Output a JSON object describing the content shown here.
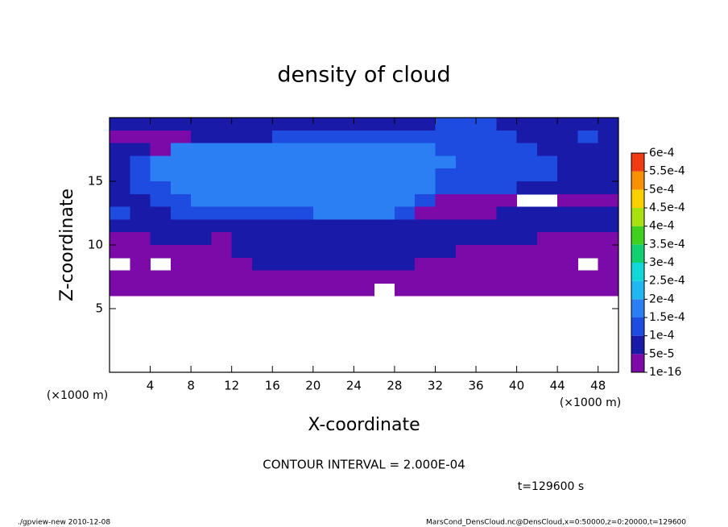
{
  "chart_data": {
    "type": "contour",
    "title": "density of cloud",
    "x_label": "X-coordinate",
    "y_label": "Z-coordinate",
    "x_unit": "(×1000 m)",
    "xlim": [
      0,
      50
    ],
    "ylim": [
      0,
      20
    ],
    "xticks": [
      4,
      8,
      12,
      16,
      20,
      24,
      28,
      32,
      36,
      40,
      44,
      48
    ],
    "yticks": [
      5,
      10,
      15
    ],
    "levels": [
      1e-16,
      {
        "value": 5e-05,
        "label": "5e-5"
      },
      {
        "value": 0.0001,
        "label": "1e-4"
      },
      {
        "value": 0.00015,
        "label": "1.5e-4"
      },
      {
        "value": 0.0002,
        "label": "2e-4"
      },
      {
        "value": 0.00025,
        "label": "2.5e-4"
      },
      {
        "value": 0.0003,
        "label": "3e-4"
      },
      {
        "value": 0.00035,
        "label": "3.5e-4"
      },
      {
        "value": 0.0004,
        "label": "4e-4"
      },
      {
        "value": 0.00045,
        "label": "4.5e-4"
      },
      {
        "value": 0.0005,
        "label": "5e-4"
      },
      {
        "value": 0.00055,
        "label": "5.5e-4"
      },
      {
        "value": 0.0006,
        "label": "6e-4"
      }
    ],
    "colors": [
      "#7b0aa8",
      "#1a1aa8",
      "#1e4ce0",
      "#2b7ff2",
      "#20b8f0",
      "#10d8d8",
      "#10d070",
      "#40d020",
      "#a8e010",
      "#f8d000",
      "#f89000",
      "#f03c14",
      "#f08888"
    ],
    "x_edges": [
      0,
      2,
      4,
      6,
      8,
      10,
      12,
      14,
      16,
      18,
      20,
      22,
      24,
      26,
      28,
      30,
      32,
      34,
      36,
      38,
      40,
      42,
      44,
      46,
      48,
      50
    ],
    "z_edges": [
      20,
      19,
      18,
      17,
      16,
      15,
      14,
      13,
      12,
      11,
      10,
      9,
      8,
      7,
      6
    ],
    "z": [
      [
        7e-05,
        7e-05,
        7e-05,
        7e-05,
        7e-05,
        7e-05,
        7e-05,
        7e-05,
        7e-05,
        7e-05,
        7e-05,
        7e-05,
        7e-05,
        7e-05,
        7e-05,
        7e-05,
        0.00012,
        0.00012,
        0.00012,
        7e-05,
        7e-05,
        7e-05,
        7e-05,
        7e-05,
        7e-05
      ],
      [
        2e-05,
        2e-05,
        2e-05,
        2e-05,
        7e-05,
        7e-05,
        7e-05,
        7e-05,
        0.00012,
        0.00012,
        0.00012,
        0.00012,
        0.00012,
        0.00012,
        0.00012,
        0.00012,
        0.00012,
        0.00012,
        0.00012,
        0.00012,
        7e-05,
        7e-05,
        7e-05,
        0.00012,
        7e-05
      ],
      [
        7e-05,
        7e-05,
        2e-05,
        0.00017,
        0.00017,
        0.00017,
        0.00017,
        0.00017,
        0.00017,
        0.00017,
        0.00017,
        0.00017,
        0.00017,
        0.00017,
        0.00017,
        0.00017,
        0.00012,
        0.00012,
        0.00012,
        0.00012,
        0.00012,
        7e-05,
        7e-05,
        7e-05,
        7e-05
      ],
      [
        7e-05,
        0.00012,
        0.00017,
        0.00017,
        0.00017,
        0.00017,
        0.00017,
        0.00017,
        0.00017,
        0.00017,
        0.00017,
        0.00017,
        0.00017,
        0.00017,
        0.00017,
        0.00017,
        0.00017,
        0.00012,
        0.00012,
        0.00012,
        0.00012,
        0.00012,
        7e-05,
        7e-05,
        7e-05
      ],
      [
        7e-05,
        0.00012,
        0.00017,
        0.00017,
        0.00017,
        0.00017,
        0.00017,
        0.00017,
        0.00017,
        0.00017,
        0.00017,
        0.00017,
        0.00017,
        0.00017,
        0.00017,
        0.00017,
        0.00012,
        0.00012,
        0.00012,
        0.00012,
        0.00012,
        0.00012,
        7e-05,
        7e-05,
        7e-05
      ],
      [
        7e-05,
        0.00012,
        0.00012,
        0.00017,
        0.00017,
        0.00017,
        0.00017,
        0.00017,
        0.00017,
        0.00017,
        0.00017,
        0.00017,
        0.00017,
        0.00017,
        0.00017,
        0.00017,
        0.00012,
        0.00012,
        0.00012,
        0.00012,
        7e-05,
        7e-05,
        7e-05,
        7e-05,
        7e-05
      ],
      [
        7e-05,
        7e-05,
        0.00012,
        0.00012,
        0.00017,
        0.00017,
        0.00017,
        0.00017,
        0.00017,
        0.00017,
        0.00017,
        0.00017,
        0.00017,
        0.00017,
        0.00017,
        0.00012,
        2e-05,
        2e-05,
        2e-05,
        2e-05,
        null,
        null,
        2e-05,
        2e-05,
        2e-05
      ],
      [
        0.00012,
        7e-05,
        7e-05,
        0.00012,
        0.00012,
        0.00012,
        0.00012,
        0.00012,
        0.00012,
        0.00012,
        0.00017,
        0.00017,
        0.00017,
        0.00017,
        0.00012,
        2e-05,
        2e-05,
        2e-05,
        2e-05,
        7e-05,
        7e-05,
        7e-05,
        7e-05,
        7e-05,
        7e-05
      ],
      [
        7e-05,
        7e-05,
        7e-05,
        7e-05,
        7e-05,
        7e-05,
        7e-05,
        7e-05,
        7e-05,
        7e-05,
        7e-05,
        7e-05,
        7e-05,
        7e-05,
        7e-05,
        7e-05,
        7e-05,
        7e-05,
        7e-05,
        7e-05,
        7e-05,
        7e-05,
        7e-05,
        7e-05,
        7e-05
      ],
      [
        2e-05,
        2e-05,
        7e-05,
        7e-05,
        7e-05,
        2e-05,
        7e-05,
        7e-05,
        7e-05,
        7e-05,
        7e-05,
        7e-05,
        7e-05,
        7e-05,
        7e-05,
        7e-05,
        7e-05,
        7e-05,
        7e-05,
        7e-05,
        7e-05,
        2e-05,
        2e-05,
        2e-05,
        2e-05
      ],
      [
        2e-05,
        2e-05,
        2e-05,
        2e-05,
        2e-05,
        2e-05,
        7e-05,
        7e-05,
        7e-05,
        7e-05,
        7e-05,
        7e-05,
        7e-05,
        7e-05,
        7e-05,
        7e-05,
        7e-05,
        2e-05,
        2e-05,
        2e-05,
        2e-05,
        2e-05,
        2e-05,
        2e-05,
        2e-05
      ],
      [
        null,
        2e-05,
        null,
        2e-05,
        2e-05,
        2e-05,
        2e-05,
        7e-05,
        7e-05,
        7e-05,
        7e-05,
        7e-05,
        7e-05,
        7e-05,
        7e-05,
        2e-05,
        2e-05,
        2e-05,
        2e-05,
        2e-05,
        2e-05,
        2e-05,
        2e-05,
        null,
        2e-05
      ],
      [
        2e-05,
        2e-05,
        2e-05,
        2e-05,
        2e-05,
        2e-05,
        2e-05,
        2e-05,
        2e-05,
        2e-05,
        2e-05,
        2e-05,
        2e-05,
        2e-05,
        2e-05,
        2e-05,
        2e-05,
        2e-05,
        2e-05,
        2e-05,
        2e-05,
        2e-05,
        2e-05,
        2e-05,
        2e-05
      ],
      [
        2e-05,
        2e-05,
        2e-05,
        2e-05,
        2e-05,
        2e-05,
        2e-05,
        2e-05,
        2e-05,
        2e-05,
        2e-05,
        2e-05,
        2e-05,
        null,
        2e-05,
        2e-05,
        2e-05,
        2e-05,
        2e-05,
        2e-05,
        2e-05,
        2e-05,
        2e-05,
        2e-05,
        2e-05
      ]
    ],
    "contour_interval": "CONTOUR INTERVAL = 2.000E-04",
    "time": "t=129600 s",
    "footer_left": "./gpview-new  2010-12-08",
    "footer_right": "MarsCond_DensCloud.nc@DensCloud,x=0:50000,z=0:20000,t=129600"
  }
}
